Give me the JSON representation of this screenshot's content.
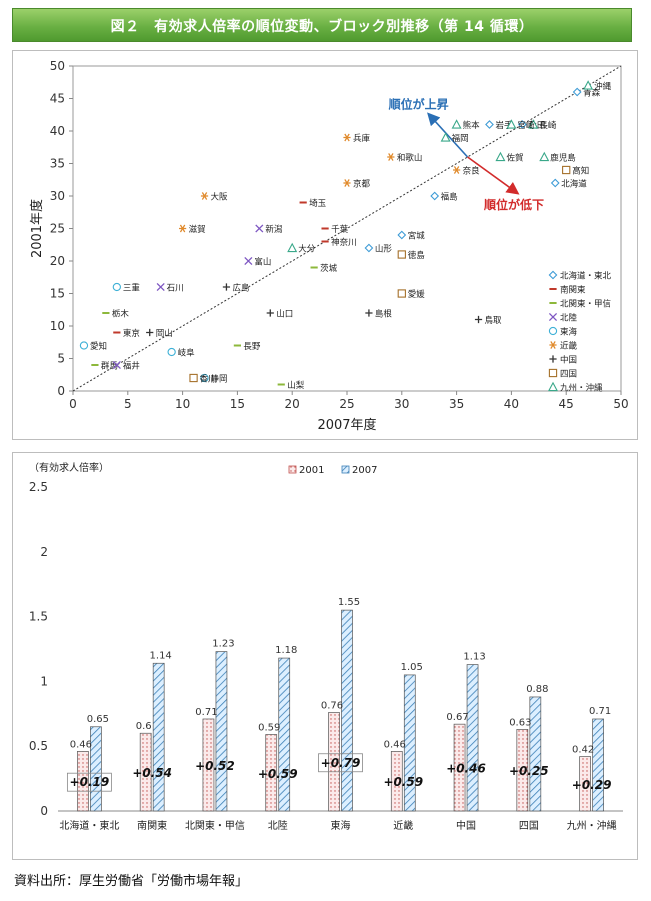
{
  "title": "図２　有効求人倍率の順位変動、ブロック別推移（第 14 循環）",
  "source": "資料出所：厚生労働省「労働市場年報」",
  "chart_data": [
    {
      "type": "scatter",
      "xlabel": "2007年度",
      "ylabel": "2001年度",
      "xlim": [
        0,
        50
      ],
      "ylim": [
        0,
        50
      ],
      "xticks": [
        "0",
        "5",
        "10",
        "15",
        "20",
        "25",
        "30",
        "35",
        "40",
        "45",
        "50"
      ],
      "yticks": [
        "0",
        "5",
        "10",
        "15",
        "20",
        "25",
        "30",
        "35",
        "40",
        "45",
        "50"
      ],
      "diagonal": true,
      "legend_position": "right",
      "annotations": {
        "up": "順位が上昇",
        "down": "順位が低下"
      },
      "series": [
        {
          "name": "北海道・東北",
          "marker": "diamond",
          "color": "#3d9bd6",
          "points": [
            {
              "label": "北海道",
              "x": 44,
              "y": 32
            },
            {
              "label": "青森",
              "x": 46,
              "y": 46
            },
            {
              "label": "岩手",
              "x": 38,
              "y": 41
            },
            {
              "label": "宮城",
              "x": 30,
              "y": 24
            },
            {
              "label": "秋田",
              "x": 41,
              "y": 41
            },
            {
              "label": "山形",
              "x": 27,
              "y": 22
            },
            {
              "label": "福島",
              "x": 33,
              "y": 30
            }
          ]
        },
        {
          "name": "南関東",
          "marker": "dash",
          "color": "#c0392b",
          "points": [
            {
              "label": "埼玉",
              "x": 21,
              "y": 29
            },
            {
              "label": "千葉",
              "x": 23,
              "y": 25
            },
            {
              "label": "東京",
              "x": 4,
              "y": 9
            },
            {
              "label": "神奈川",
              "x": 23,
              "y": 23
            }
          ]
        },
        {
          "name": "北関東・甲信",
          "marker": "dash",
          "color": "#8db83b",
          "points": [
            {
              "label": "茨城",
              "x": 22,
              "y": 19
            },
            {
              "label": "栃木",
              "x": 3,
              "y": 12
            },
            {
              "label": "群馬",
              "x": 2,
              "y": 4
            },
            {
              "label": "山梨",
              "x": 19,
              "y": 1
            },
            {
              "label": "長野",
              "x": 15,
              "y": 7
            }
          ]
        },
        {
          "name": "北陸",
          "marker": "x",
          "color": "#7e57c2",
          "points": [
            {
              "label": "新潟",
              "x": 17,
              "y": 25
            },
            {
              "label": "富山",
              "x": 16,
              "y": 20
            },
            {
              "label": "石川",
              "x": 8,
              "y": 16
            },
            {
              "label": "福井",
              "x": 4,
              "y": 4
            }
          ]
        },
        {
          "name": "東海",
          "marker": "circle",
          "color": "#3db0d6",
          "points": [
            {
              "label": "岐阜",
              "x": 9,
              "y": 6
            },
            {
              "label": "静岡",
              "x": 12,
              "y": 2
            },
            {
              "label": "愛知",
              "x": 1,
              "y": 7
            },
            {
              "label": "三重",
              "x": 4,
              "y": 16
            }
          ]
        },
        {
          "name": "近畿",
          "marker": "asterisk",
          "color": "#e08a2c",
          "points": [
            {
              "label": "滋賀",
              "x": 10,
              "y": 25
            },
            {
              "label": "京都",
              "x": 25,
              "y": 32
            },
            {
              "label": "大阪",
              "x": 12,
              "y": 30
            },
            {
              "label": "兵庫",
              "x": 25,
              "y": 39
            },
            {
              "label": "奈良",
              "x": 35,
              "y": 34
            },
            {
              "label": "和歌山",
              "x": 29,
              "y": 36
            }
          ]
        },
        {
          "name": "中国",
          "marker": "plus",
          "color": "#333333",
          "points": [
            {
              "label": "鳥取",
              "x": 37,
              "y": 11
            },
            {
              "label": "島根",
              "x": 27,
              "y": 12
            },
            {
              "label": "岡山",
              "x": 7,
              "y": 9
            },
            {
              "label": "広島",
              "x": 14,
              "y": 16
            },
            {
              "label": "山口",
              "x": 18,
              "y": 12
            }
          ]
        },
        {
          "name": "四国",
          "marker": "square",
          "color": "#a5702a",
          "points": [
            {
              "label": "徳島",
              "x": 30,
              "y": 21
            },
            {
              "label": "香川",
              "x": 11,
              "y": 2
            },
            {
              "label": "愛媛",
              "x": 30,
              "y": 15
            },
            {
              "label": "高知",
              "x": 45,
              "y": 34
            }
          ]
        },
        {
          "name": "九州・沖縄",
          "marker": "triangle",
          "color": "#3aa88a",
          "points": [
            {
              "label": "福岡",
              "x": 34,
              "y": 39
            },
            {
              "label": "佐賀",
              "x": 39,
              "y": 36
            },
            {
              "label": "長崎",
              "x": 42,
              "y": 41
            },
            {
              "label": "熊本",
              "x": 35,
              "y": 41
            },
            {
              "label": "大分",
              "x": 20,
              "y": 22
            },
            {
              "label": "宮崎",
              "x": 40,
              "y": 41
            },
            {
              "label": "鹿児島",
              "x": 43,
              "y": 36
            },
            {
              "label": "沖縄",
              "x": 47,
              "y": 47
            }
          ]
        }
      ]
    },
    {
      "type": "bar",
      "ylabel": "（有効求人倍率）",
      "ylim": [
        0,
        2.5
      ],
      "yticks": [
        "0",
        "0.5",
        "1",
        "1.5",
        "2",
        "2.5"
      ],
      "legend_position": "top",
      "categories": [
        "北海道・東北",
        "南関東",
        "北関東・甲信",
        "北陸",
        "東海",
        "近畿",
        "中国",
        "四国",
        "九州・沖縄"
      ],
      "series": [
        {
          "name": "2001",
          "values": [
            0.46,
            0.6,
            0.71,
            0.59,
            0.76,
            0.46,
            0.67,
            0.63,
            0.42
          ],
          "labels": [
            "0.46",
            "0.6",
            "0.71",
            "0.59",
            "0.76",
            "0.46",
            "0.67",
            "0.63",
            "0.42"
          ]
        },
        {
          "name": "2007",
          "values": [
            0.65,
            1.14,
            1.23,
            1.18,
            1.55,
            1.05,
            1.13,
            0.88,
            0.71
          ],
          "labels": [
            "0.65",
            "1.14",
            "1.23",
            "1.18",
            "1.55",
            "1.05",
            "1.13",
            "0.88",
            "0.71"
          ]
        }
      ],
      "differences": [
        "+0.19",
        "+0.54",
        "+0.52",
        "+0.59",
        "+0.79",
        "+0.59",
        "+0.46",
        "+0.25",
        "+0.29"
      ],
      "boxed_differences": [
        0,
        4
      ]
    }
  ]
}
